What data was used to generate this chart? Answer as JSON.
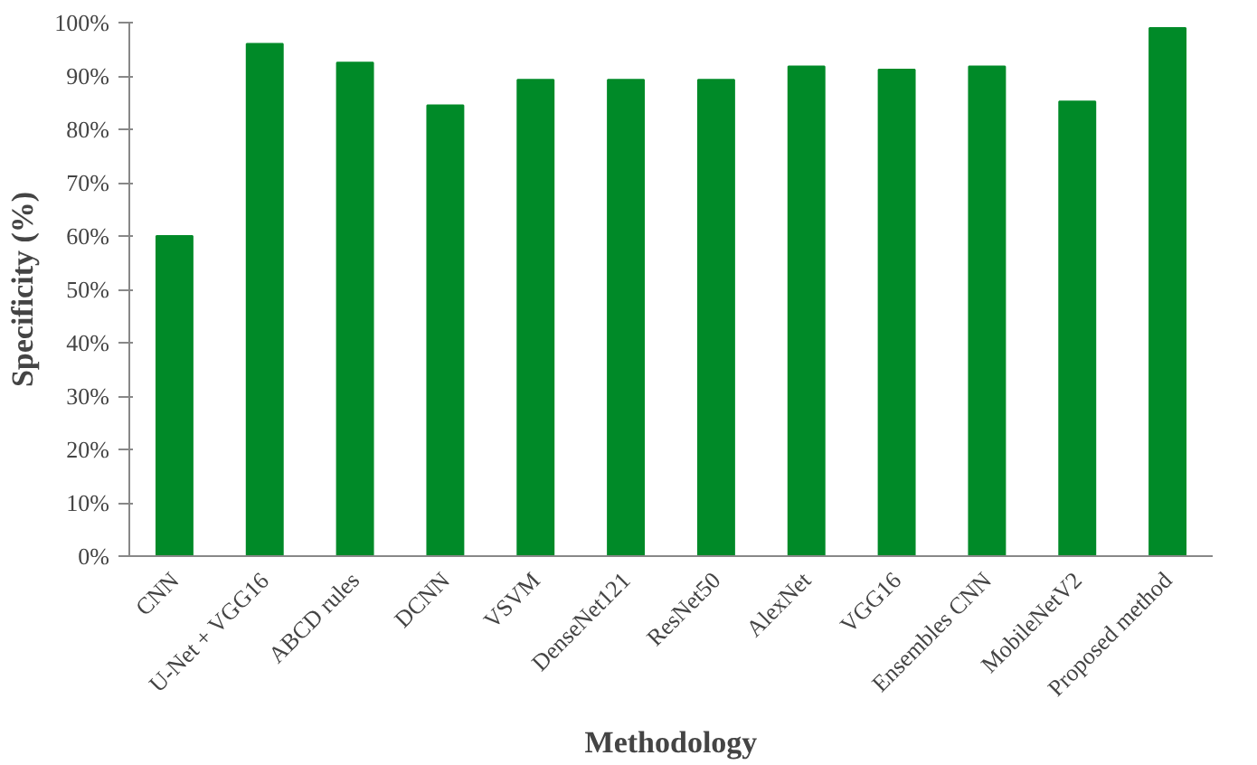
{
  "chart_data": {
    "type": "bar",
    "xlabel": "Methodology",
    "ylabel": "Specificity (%)",
    "categories": [
      "CNN",
      "U-Net + VGG16",
      "ABCD rules",
      "DCNN",
      "VSVM",
      "DenseNet121",
      "ResNet50",
      "AlexNet",
      "VGG16",
      "Ensembles CNN",
      "MobileNetV2",
      "Proposed method"
    ],
    "values": [
      60,
      96,
      92.5,
      84.5,
      89.3,
      89.3,
      89.3,
      91.8,
      91.2,
      91.8,
      85.2,
      99
    ],
    "color": "#008a28",
    "ylim": [
      0,
      100
    ],
    "yticks": [
      {
        "value": 0,
        "label": "0%"
      },
      {
        "value": 10,
        "label": "10%"
      },
      {
        "value": 20,
        "label": "20%"
      },
      {
        "value": 30,
        "label": "30%"
      },
      {
        "value": 40,
        "label": "40%"
      },
      {
        "value": 50,
        "label": "50%"
      },
      {
        "value": 60,
        "label": "60%"
      },
      {
        "value": 70,
        "label": "70%"
      },
      {
        "value": 80,
        "label": "80%"
      },
      {
        "value": 90,
        "label": "90%"
      },
      {
        "value": 100,
        "label": "100%"
      }
    ],
    "grid": false
  }
}
